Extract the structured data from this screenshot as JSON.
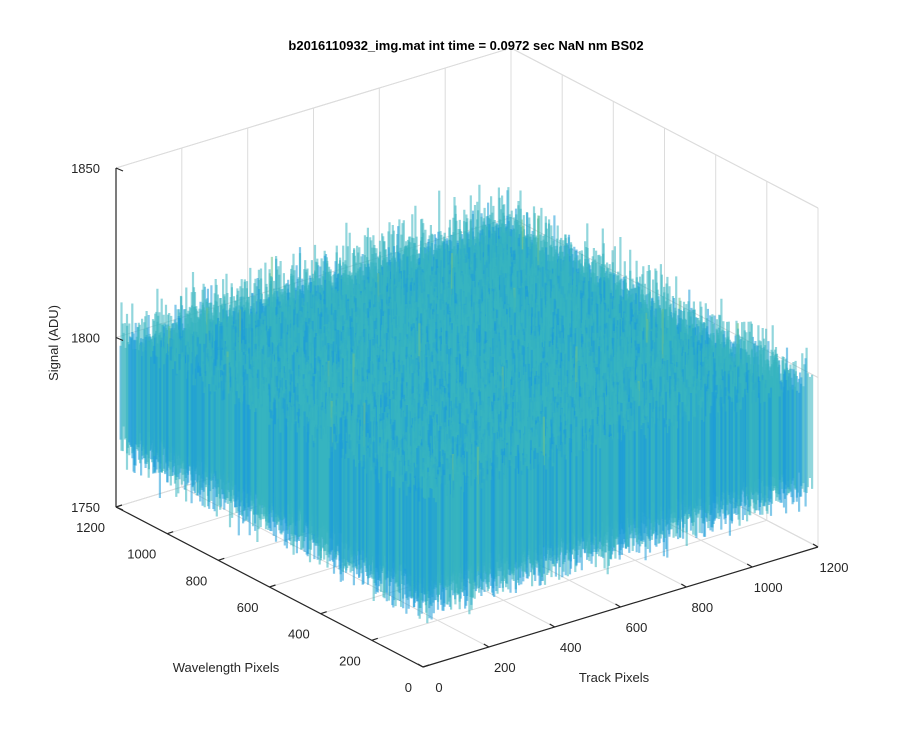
{
  "chart_data": {
    "type": "surface3d",
    "title": "b2016110932_img.mat int time = 0.0972 sec  NaN nm BS02",
    "xlabel": "Track Pixels",
    "ylabel": "Wavelength Pixels",
    "zlabel": "Signal (ADU)",
    "xlim": [
      0,
      1200
    ],
    "ylim": [
      0,
      1200
    ],
    "zlim": [
      1750,
      1850
    ],
    "xticks": [
      "0",
      "200",
      "400",
      "600",
      "800",
      "1000",
      "1200"
    ],
    "yticks": [
      "0",
      "200",
      "400",
      "600",
      "800",
      "1000",
      "1200"
    ],
    "zticks": [
      "1750",
      "1800",
      "1850"
    ],
    "surface_mean": 1785,
    "surface_range": [
      1757,
      1835
    ],
    "grid": true,
    "colormap": [
      "#0072BD",
      "#1E9CD8",
      "#36B4C0",
      "#6CC38A",
      "#B8C950",
      "#E5D23C"
    ]
  }
}
